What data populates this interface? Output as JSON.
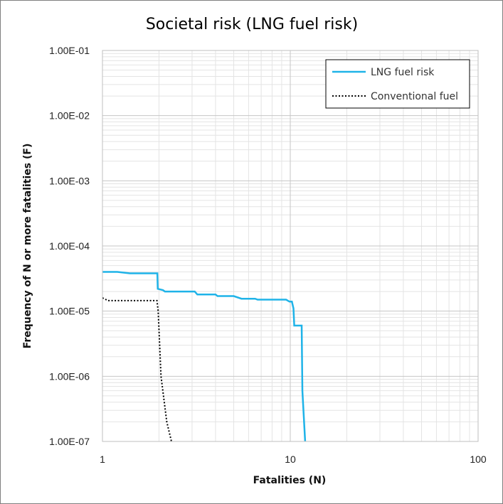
{
  "chart_data": {
    "type": "line",
    "title": "Societal risk (LNG fuel risk)",
    "xlabel": "Fatalities (N)",
    "ylabel": "Frequency of N or more fatalities (F)",
    "x_scale": "log",
    "y_scale": "log",
    "xlim": [
      1,
      100
    ],
    "ylim": [
      1e-07,
      0.1
    ],
    "x_ticks": [
      1,
      10,
      100
    ],
    "x_tick_labels": [
      "1",
      "10",
      "100"
    ],
    "y_ticks": [
      1e-07,
      1e-06,
      1e-05,
      0.0001,
      0.001,
      0.01,
      0.1
    ],
    "y_tick_labels": [
      "1.00E-07",
      "1.00E-06",
      "1.00E-05",
      "1.00E-04",
      "1.00E-03",
      "1.00E-02",
      "1.00E-01"
    ],
    "grid": true,
    "legend_position": "top-right",
    "series": [
      {
        "name": "LNG fuel risk",
        "color": "#1fb3e8",
        "style": "solid",
        "points": [
          [
            1.0,
            4e-05
          ],
          [
            1.2,
            4e-05
          ],
          [
            1.4,
            3.8e-05
          ],
          [
            1.96,
            3.8e-05
          ],
          [
            1.97,
            2.2e-05
          ],
          [
            2.1,
            2.1e-05
          ],
          [
            2.15,
            2e-05
          ],
          [
            3.1,
            2e-05
          ],
          [
            3.2,
            1.8e-05
          ],
          [
            4.0,
            1.8e-05
          ],
          [
            4.1,
            1.7e-05
          ],
          [
            5.0,
            1.7e-05
          ],
          [
            5.5,
            1.55e-05
          ],
          [
            6.5,
            1.55e-05
          ],
          [
            6.7,
            1.5e-05
          ],
          [
            9.5,
            1.5e-05
          ],
          [
            9.9,
            1.4e-05
          ],
          [
            10.2,
            1.4e-05
          ],
          [
            10.4,
            1.1e-05
          ],
          [
            10.5,
            6e-06
          ],
          [
            11.5,
            6e-06
          ],
          [
            11.6,
            6e-07
          ],
          [
            12.0,
            1e-07
          ]
        ]
      },
      {
        "name": "Conventional fuel",
        "color": "#000000",
        "style": "dotted",
        "points": [
          [
            1.0,
            1.6e-05
          ],
          [
            1.07,
            1.45e-05
          ],
          [
            1.5,
            1.45e-05
          ],
          [
            1.95,
            1.45e-05
          ],
          [
            1.98,
            1e-05
          ],
          [
            2.05,
            1e-06
          ],
          [
            2.2,
            2e-07
          ],
          [
            2.33,
            1e-07
          ]
        ]
      }
    ]
  }
}
